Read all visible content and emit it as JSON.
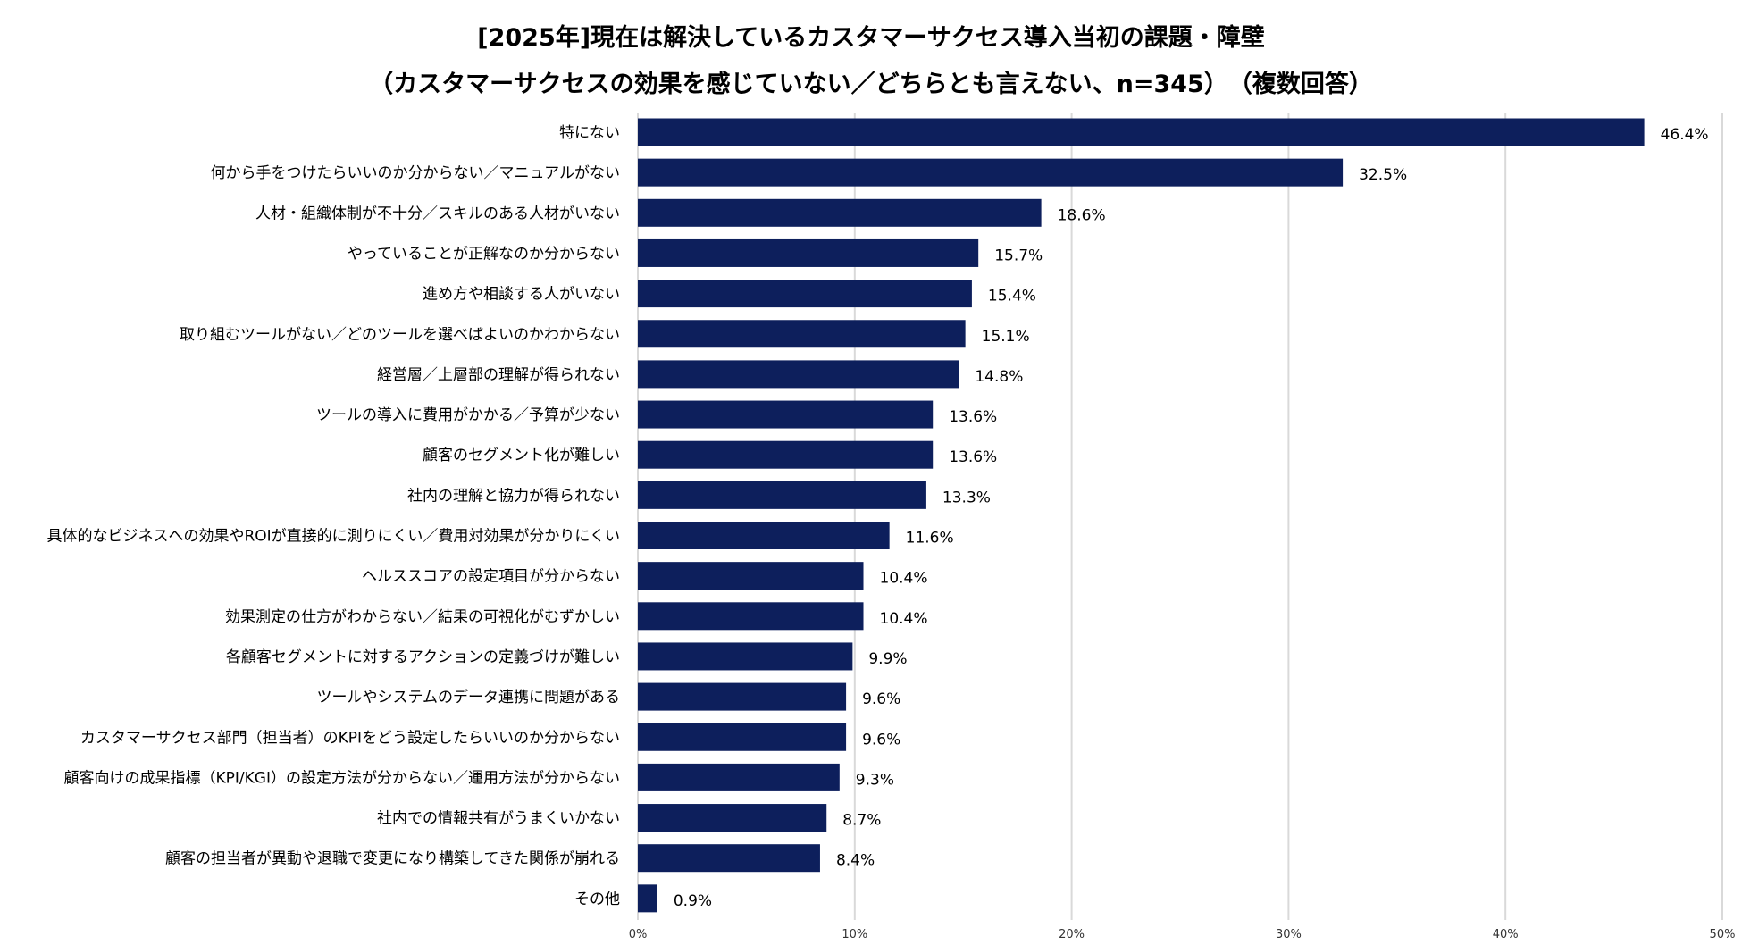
{
  "chart_data": {
    "type": "bar",
    "orientation": "horizontal",
    "title": "[2025年]現在は解決しているカスタマーサクセス導入当初の課題・障壁",
    "subtitle": "（カスタマーサクセスの効果を感じていない／どちらとも言えない、n=345）　（複数回答）",
    "categories": [
      "特にない",
      "何から手をつけたらいいのか分からない／マニュアルがない",
      "人材・組織体制が不十分／スキルのある人材がいない",
      "やっていることが正解なのか分からない",
      "進め方や相談する人がいない",
      "取り組むツールがない／どのツールを選べばよいのかわからない",
      "経営層／上層部の理解が得られない",
      "ツールの導入に費用がかかる／予算が少ない",
      "顧客のセグメント化が難しい",
      "社内の理解と協力が得られない",
      "具体的なビジネスへの効果やROIが直接的に測りにくい／費用対効果が分かりにくい",
      "ヘルススコアの設定項目が分からない",
      "効果測定の仕方がわからない／結果の可視化がむずかしい",
      "各顧客セグメントに対するアクションの定義づけが難しい",
      "ツールやシステムのデータ連携に問題がある",
      "カスタマーサクセス部門（担当者）のKPIをどう設定したらいいのか分からない",
      "顧客向けの成果指標（KPI/KGI）の設定方法が分からない／運用方法が分からない",
      "社内での情報共有がうまくいかない",
      "顧客の担当者が異動や退職で変更になり構築してきた関係が崩れる",
      "その他"
    ],
    "values": [
      46.4,
      32.5,
      18.6,
      15.7,
      15.4,
      15.1,
      14.8,
      13.6,
      13.6,
      13.3,
      11.6,
      10.4,
      10.4,
      9.9,
      9.6,
      9.6,
      9.3,
      8.7,
      8.4,
      0.9
    ],
    "value_labels": [
      "46.4%",
      "32.5%",
      "18.6%",
      "15.7%",
      "15.4%",
      "15.1%",
      "14.8%",
      "13.6%",
      "13.6%",
      "13.3%",
      "11.6%",
      "10.4%",
      "10.4%",
      "9.9%",
      "9.6%",
      "9.6%",
      "9.3%",
      "8.7%",
      "8.4%",
      "0.9%"
    ],
    "xlim": [
      0,
      50
    ],
    "xticks": [
      0,
      10,
      20,
      30,
      40,
      50
    ],
    "xtick_labels": [
      "0%",
      "10%",
      "20%",
      "30%",
      "40%",
      "50%"
    ],
    "xlabel": "",
    "ylabel": "",
    "grid": true,
    "legend": "none",
    "bar_color": "#0d1f5c",
    "grid_color": "#d9d9d9"
  }
}
